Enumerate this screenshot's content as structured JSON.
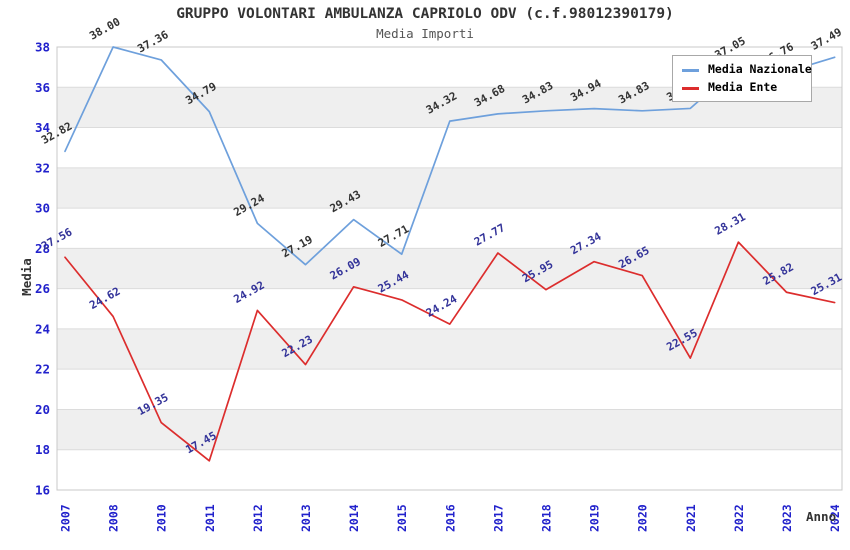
{
  "title": "GRUPPO VOLONTARI AMBULANZA CAPRIOLO ODV (c.f.98012390179)",
  "subtitle": "Media Importi",
  "legend": {
    "position": "top-right",
    "items": [
      {
        "label": "Media Nazionale",
        "color": "#6EA0DC"
      },
      {
        "label": "Media Ente",
        "color": "#DC2D2D"
      }
    ]
  },
  "chart_data": {
    "type": "line",
    "title": "GRUPPO VOLONTARI AMBULANZA CAPRIOLO ODV (c.f.98012390179)",
    "subtitle": "Media Importi",
    "xlabel": "Anno",
    "ylabel": "Media",
    "categories": [
      "2007",
      "2008",
      "2010",
      "2011",
      "2012",
      "2013",
      "2014",
      "2015",
      "2016",
      "2017",
      "2018",
      "2019",
      "2020",
      "2021",
      "2022",
      "2023",
      "2024"
    ],
    "series": [
      {
        "name": "Media Nazionale",
        "color": "#6EA0DC",
        "label_color": "#333333",
        "values": [
          32.82,
          38.0,
          37.36,
          34.79,
          29.24,
          27.19,
          29.43,
          27.71,
          34.32,
          34.68,
          34.83,
          34.94,
          34.83,
          34.95,
          37.05,
          36.76,
          37.49
        ]
      },
      {
        "name": "Media Ente",
        "color": "#DC2D2D",
        "label_color": "#333399",
        "values": [
          27.56,
          24.62,
          19.35,
          17.45,
          24.92,
          22.23,
          26.09,
          25.44,
          24.24,
          27.77,
          25.95,
          27.34,
          26.65,
          22.55,
          28.31,
          25.82,
          25.31
        ]
      }
    ],
    "ylim": [
      16,
      38
    ],
    "ytick_step": 2,
    "y_ticks": [
      16,
      18,
      20,
      22,
      24,
      26,
      28,
      30,
      32,
      34,
      36,
      38
    ],
    "grid": "horizontal gridlines with alternating gray bands every 2 units",
    "band_color": "#EFEFEF",
    "gridline_color": "#DCDCDC",
    "plot_border_color": "#C8C8C8",
    "tick_label_color": "#2222CC",
    "axis_title_color": "#333333",
    "legend_position": "top-right",
    "data_labels": "each point labeled with value, rotated ~30deg"
  }
}
